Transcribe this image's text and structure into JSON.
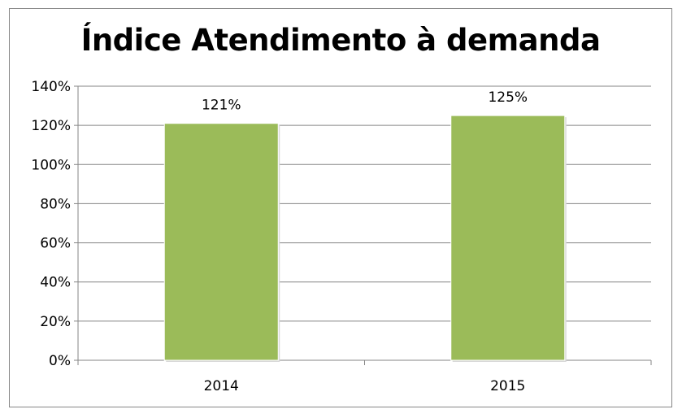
{
  "chart_data": {
    "type": "bar",
    "title": "Índice Atendimento à demanda",
    "categories": [
      "2014",
      "2015"
    ],
    "values": [
      121,
      125
    ],
    "data_labels": [
      "121%",
      "125%"
    ],
    "xlabel": "",
    "ylabel": "",
    "ylim": [
      0,
      140
    ],
    "yticks": [
      0,
      20,
      40,
      60,
      80,
      100,
      120,
      140
    ],
    "ytick_labels": [
      "0%",
      "20%",
      "40%",
      "60%",
      "80%",
      "100%",
      "120%",
      "140%"
    ],
    "grid": true,
    "legend": "none",
    "bar_color": "#9BBB59"
  }
}
